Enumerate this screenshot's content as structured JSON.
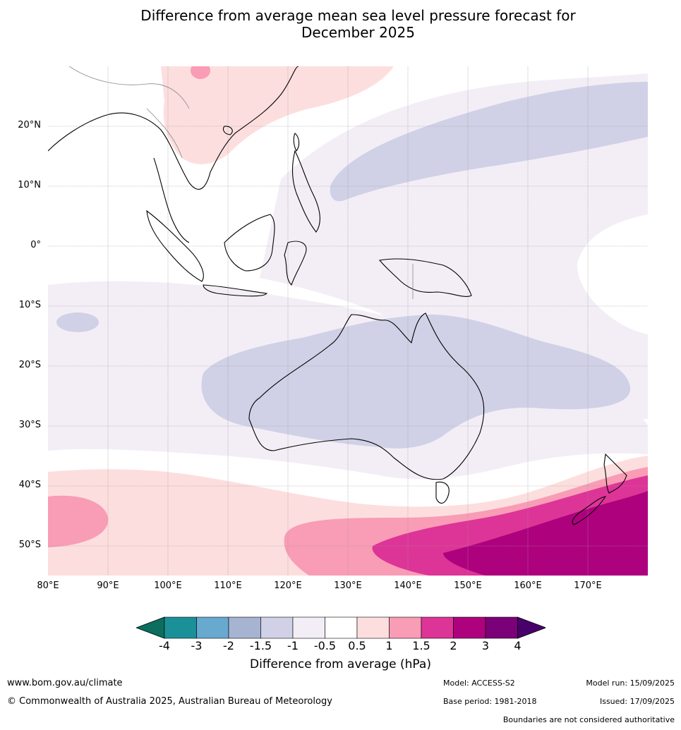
{
  "title_line1": "Difference from average mean sea level pressure forecast for",
  "title_line2": "December 2025",
  "lat_labels": [
    "20°N",
    "10°N",
    "0°",
    "10°S",
    "20°S",
    "30°S",
    "40°S",
    "50°S"
  ],
  "lon_labels": [
    "80°E",
    "90°E",
    "100°E",
    "110°E",
    "120°E",
    "130°E",
    "140°E",
    "150°E",
    "160°E",
    "170°E"
  ],
  "colorbar": {
    "ticks": [
      "-4",
      "-3",
      "-2",
      "-1.5",
      "-1",
      "-0.5",
      "0.5",
      "1",
      "1.5",
      "2",
      "3",
      "4"
    ],
    "colors": [
      "#0b6e5e",
      "#1c9099",
      "#67a9cf",
      "#a6b4d2",
      "#d0d1e6",
      "#f3eef6",
      "#ffffff",
      "#fddede",
      "#f99cb6",
      "#dd3497",
      "#ae017e",
      "#7a0177",
      "#49006a"
    ],
    "label": "Difference from average (hPa)"
  },
  "footer": {
    "website": "www.bom.gov.au/climate",
    "copyright": "© Commonwealth of Australia 2025, Australian Bureau of Meteorology",
    "model": "Model: ACCESS-S2",
    "base_period": "Base period: 1981-2018",
    "model_run": "Model run: 15/09/2025",
    "issued": "Issued: 17/09/2025",
    "boundaries": "Boundaries are not considered authoritative"
  }
}
